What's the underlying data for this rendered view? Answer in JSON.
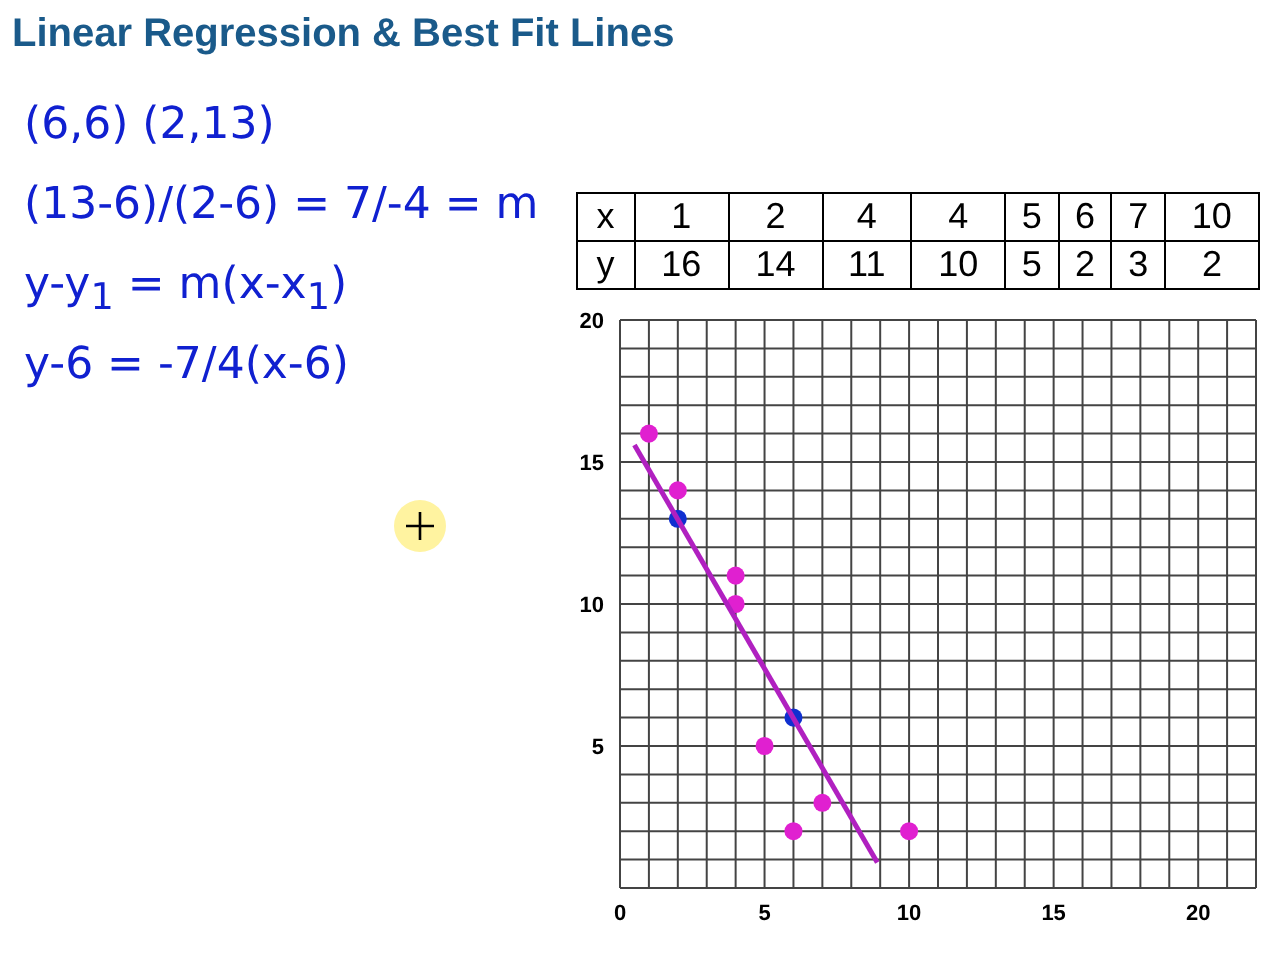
{
  "chart_data": [
    {
      "type": "scatter",
      "title": "Linear Regression & Best Fit Lines",
      "annotations": [
        "(6,6)   (2,13)",
        "(13-6)/(2-6) = 7/-4 = m",
        "y-y$_{1}$ = m(x-x$_{1}$)",
        "y-6 = -7/4(x-6)"
      ],
      "series": [
        {
          "color": "#e020d0",
          "x": [
            1,
            2,
            4,
            4,
            5,
            6,
            7,
            10
          ],
          "values": [
            16,
            14,
            11,
            10,
            5,
            2,
            3,
            2
          ]
        },
        {
          "color": "#1030d0",
          "x": [
            2,
            6
          ],
          "values": [
            13,
            6
          ]
        },
        {
          "type": "line",
          "marker": "none",
          "color": "#b020c0",
          "x": [
            0.5,
            8.9
          ],
          "values": [
            15.6,
            0.9
          ]
        }
      ],
      "marker": "circle",
      "grid": true,
      "xlim": [
        0,
        22
      ],
      "ylim": [
        0,
        20
      ],
      "xticks": [
        0,
        {
          "value": 1,
          "label": null
        },
        {
          "value": 2,
          "label": null
        },
        {
          "value": 3,
          "label": null
        },
        {
          "value": 4,
          "label": null
        },
        5,
        {
          "value": 6,
          "label": null
        },
        {
          "value": 7,
          "label": null
        },
        {
          "value": 8,
          "label": null
        },
        {
          "value": 9,
          "label": null
        },
        10,
        {
          "value": 11,
          "label": null
        },
        {
          "value": 12,
          "label": null
        },
        {
          "value": 13,
          "label": null
        },
        {
          "value": 14,
          "label": null
        },
        15,
        {
          "value": 16,
          "label": null
        },
        {
          "value": 17,
          "label": null
        },
        {
          "value": 18,
          "label": null
        },
        {
          "value": 19,
          "label": null
        },
        20,
        {
          "value": 21,
          "label": null
        },
        {
          "value": 22,
          "label": null
        }
      ],
      "yticks": [
        {
          "value": 0,
          "label": null
        },
        {
          "value": 1,
          "label": null
        },
        {
          "value": 2,
          "label": null
        },
        {
          "value": 3,
          "label": null
        },
        {
          "value": 4,
          "label": null
        },
        5,
        {
          "value": 6,
          "label": null
        },
        {
          "value": 7,
          "label": null
        },
        {
          "value": 8,
          "label": null
        },
        {
          "value": 9,
          "label": null
        },
        10,
        {
          "value": 11,
          "label": null
        },
        {
          "value": 12,
          "label": null
        },
        {
          "value": 13,
          "label": null
        },
        {
          "value": 14,
          "label": null
        },
        15,
        {
          "value": 16,
          "label": null
        },
        {
          "value": 17,
          "label": null
        },
        {
          "value": 18,
          "label": null
        },
        {
          "value": 19,
          "label": null
        },
        20
      ]
    },
    {
      "type": "other",
      "xlabel": "x",
      "ylabel": "y",
      "categories": [
        "1",
        "2",
        "4",
        "4",
        "5",
        "6",
        "7",
        "10"
      ],
      "values": [
        16,
        14,
        11,
        10,
        5,
        2,
        3,
        2
      ],
      "data_labels": true
    }
  ]
}
